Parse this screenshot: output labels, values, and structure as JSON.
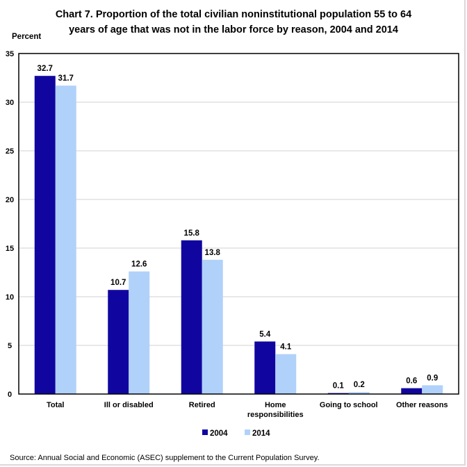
{
  "chart_data": {
    "type": "bar",
    "title_line1": "Chart 7.  Proportion of the total civilian noninstitutional population 55 to 64",
    "title_line2": "years of age that was not in the labor force by reason, 2004 and 2014",
    "ylabel": "Percent",
    "xlabel": "",
    "ylim": [
      0,
      35
    ],
    "yticks": [
      0,
      5,
      10,
      15,
      20,
      25,
      30,
      35
    ],
    "grid": true,
    "categories": [
      [
        "Total"
      ],
      [
        "Ill or disabled"
      ],
      [
        "Retired"
      ],
      [
        "Home",
        "responsibilities"
      ],
      [
        "Going to school"
      ],
      [
        "Other reasons"
      ]
    ],
    "series": [
      {
        "name": "2004",
        "color": "#10069f",
        "values": [
          32.7,
          10.7,
          15.8,
          5.4,
          0.1,
          0.6
        ]
      },
      {
        "name": "2014",
        "color": "#b0d1fa",
        "values": [
          31.7,
          12.6,
          13.8,
          4.1,
          0.2,
          0.9
        ]
      }
    ],
    "legend_position": "bottom-center",
    "source": "Source:  Annual Social and Economic (ASEC) supplement to the Current Population Survey."
  }
}
